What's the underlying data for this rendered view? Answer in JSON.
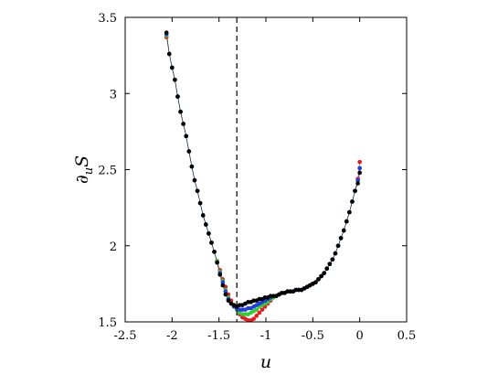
{
  "chart_data": {
    "type": "scatter",
    "title": "",
    "xlabel": "u",
    "ylabel": {
      "partial": "∂",
      "sub": "u",
      "main": "S"
    },
    "xlim": [
      -2.5,
      0.5
    ],
    "ylim": [
      1.5,
      3.5
    ],
    "xticks": [
      "-2.5",
      "-2",
      "-1.5",
      "-1",
      "-0.5",
      "0",
      "0.5"
    ],
    "yticks": [
      "1.5",
      "2",
      "2.5",
      "3",
      "3.5"
    ],
    "xtick_values": [
      -2.5,
      -2,
      -1.5,
      -1,
      -0.5,
      0,
      0.5
    ],
    "ytick_values": [
      1.5,
      2,
      2.5,
      3,
      3.5
    ],
    "vline": {
      "x": -1.31,
      "style": "dashed",
      "color": "#000000"
    },
    "grid": false,
    "legend": "none",
    "series": [
      {
        "color": "#e41a1c",
        "x": [
          -2.06,
          -2.03,
          -2.0,
          -1.97,
          -1.94,
          -1.91,
          -1.88,
          -1.85,
          -1.82,
          -1.79,
          -1.76,
          -1.73,
          -1.7,
          -1.67,
          -1.64,
          -1.61,
          -1.58,
          -1.55,
          -1.52,
          -1.49,
          -1.46,
          -1.43,
          -1.4,
          -1.37,
          -1.34,
          -1.31,
          -1.28,
          -1.25,
          -1.22,
          -1.19,
          -1.16,
          -1.13,
          -1.1,
          -1.07,
          -1.04,
          -1.01,
          -0.98,
          -0.95,
          -0.92,
          -0.89,
          -0.86,
          -0.83,
          -0.8,
          -0.77,
          -0.74,
          -0.71,
          -0.68,
          -0.65,
          -0.62,
          -0.59,
          -0.56,
          -0.53,
          -0.5,
          -0.47,
          -0.44,
          -0.41,
          -0.38,
          -0.35,
          -0.32,
          -0.29,
          -0.26,
          -0.23,
          -0.2,
          -0.17,
          -0.14,
          -0.11,
          -0.08,
          -0.05,
          -0.02,
          0.0
        ],
        "y": [
          3.37,
          3.26,
          3.17,
          3.09,
          2.98,
          2.88,
          2.8,
          2.72,
          2.62,
          2.52,
          2.43,
          2.36,
          2.28,
          2.2,
          2.14,
          2.08,
          2.02,
          1.96,
          1.9,
          1.84,
          1.78,
          1.73,
          1.68,
          1.64,
          1.61,
          1.58,
          1.55,
          1.53,
          1.52,
          1.51,
          1.51,
          1.52,
          1.54,
          1.56,
          1.58,
          1.6,
          1.62,
          1.64,
          1.66,
          1.67,
          1.68,
          1.69,
          1.69,
          1.7,
          1.7,
          1.7,
          1.71,
          1.71,
          1.71,
          1.72,
          1.73,
          1.74,
          1.75,
          1.76,
          1.78,
          1.8,
          1.82,
          1.85,
          1.88,
          1.91,
          1.95,
          2.0,
          2.05,
          2.1,
          2.16,
          2.22,
          2.29,
          2.36,
          2.44,
          2.55
        ]
      },
      {
        "color": "#33cc33",
        "x": [
          -2.06,
          -2.03,
          -2.0,
          -1.97,
          -1.94,
          -1.91,
          -1.88,
          -1.85,
          -1.82,
          -1.79,
          -1.76,
          -1.73,
          -1.7,
          -1.67,
          -1.64,
          -1.61,
          -1.58,
          -1.55,
          -1.52,
          -1.49,
          -1.46,
          -1.43,
          -1.4,
          -1.37,
          -1.34,
          -1.31,
          -1.28,
          -1.25,
          -1.22,
          -1.19,
          -1.16,
          -1.13,
          -1.1,
          -1.07,
          -1.04,
          -1.01,
          -0.98,
          -0.95,
          -0.92,
          -0.89,
          -0.86,
          -0.83,
          -0.8,
          -0.77,
          -0.74,
          -0.71,
          -0.68,
          -0.65,
          -0.62,
          -0.59,
          -0.56,
          -0.53,
          -0.5,
          -0.47,
          -0.44,
          -0.41,
          -0.38,
          -0.35,
          -0.32,
          -0.29,
          -0.26,
          -0.23,
          -0.2,
          -0.17,
          -0.14,
          -0.11,
          -0.08,
          -0.05,
          -0.02,
          0.0
        ],
        "y": [
          3.38,
          3.26,
          3.17,
          3.09,
          2.98,
          2.88,
          2.8,
          2.72,
          2.62,
          2.52,
          2.43,
          2.36,
          2.28,
          2.2,
          2.14,
          2.08,
          2.02,
          1.96,
          1.9,
          1.83,
          1.77,
          1.71,
          1.66,
          1.62,
          1.6,
          1.58,
          1.56,
          1.55,
          1.55,
          1.55,
          1.56,
          1.57,
          1.58,
          1.6,
          1.61,
          1.62,
          1.63,
          1.65,
          1.66,
          1.67,
          1.68,
          1.69,
          1.69,
          1.7,
          1.7,
          1.7,
          1.71,
          1.71,
          1.71,
          1.72,
          1.73,
          1.74,
          1.75,
          1.76,
          1.78,
          1.8,
          1.82,
          1.85,
          1.88,
          1.91,
          1.95,
          2.0,
          2.05,
          2.1,
          2.16,
          2.22,
          2.29,
          2.36,
          2.43,
          2.51
        ]
      },
      {
        "color": "#1f3fe0",
        "x": [
          -2.06,
          -2.03,
          -2.0,
          -1.97,
          -1.94,
          -1.91,
          -1.88,
          -1.85,
          -1.82,
          -1.79,
          -1.76,
          -1.73,
          -1.7,
          -1.67,
          -1.64,
          -1.61,
          -1.58,
          -1.55,
          -1.52,
          -1.49,
          -1.46,
          -1.43,
          -1.4,
          -1.37,
          -1.34,
          -1.31,
          -1.28,
          -1.25,
          -1.22,
          -1.19,
          -1.16,
          -1.13,
          -1.1,
          -1.07,
          -1.04,
          -1.01,
          -0.98,
          -0.95,
          -0.92,
          -0.89,
          -0.86,
          -0.83,
          -0.8,
          -0.77,
          -0.74,
          -0.71,
          -0.68,
          -0.65,
          -0.62,
          -0.59,
          -0.56,
          -0.53,
          -0.5,
          -0.47,
          -0.44,
          -0.41,
          -0.38,
          -0.35,
          -0.32,
          -0.29,
          -0.26,
          -0.23,
          -0.2,
          -0.17,
          -0.14,
          -0.11,
          -0.08,
          -0.05,
          -0.02,
          0.0
        ],
        "y": [
          3.39,
          3.26,
          3.17,
          3.09,
          2.98,
          2.88,
          2.8,
          2.72,
          2.62,
          2.52,
          2.43,
          2.36,
          2.28,
          2.2,
          2.14,
          2.08,
          2.02,
          1.96,
          1.89,
          1.82,
          1.76,
          1.7,
          1.65,
          1.62,
          1.6,
          1.59,
          1.58,
          1.58,
          1.58,
          1.59,
          1.59,
          1.6,
          1.61,
          1.62,
          1.63,
          1.64,
          1.65,
          1.66,
          1.67,
          1.67,
          1.68,
          1.69,
          1.69,
          1.7,
          1.7,
          1.7,
          1.71,
          1.71,
          1.71,
          1.72,
          1.73,
          1.74,
          1.75,
          1.76,
          1.78,
          1.8,
          1.82,
          1.85,
          1.88,
          1.91,
          1.95,
          2.0,
          2.05,
          2.1,
          2.16,
          2.22,
          2.29,
          2.36,
          2.43,
          2.51
        ]
      },
      {
        "color": "#000000",
        "x": [
          -2.06,
          -2.03,
          -2.0,
          -1.97,
          -1.94,
          -1.91,
          -1.88,
          -1.85,
          -1.82,
          -1.79,
          -1.76,
          -1.73,
          -1.7,
          -1.67,
          -1.64,
          -1.61,
          -1.58,
          -1.55,
          -1.52,
          -1.49,
          -1.46,
          -1.43,
          -1.4,
          -1.37,
          -1.34,
          -1.31,
          -1.28,
          -1.25,
          -1.22,
          -1.19,
          -1.16,
          -1.13,
          -1.1,
          -1.07,
          -1.04,
          -1.01,
          -0.98,
          -0.95,
          -0.92,
          -0.89,
          -0.86,
          -0.83,
          -0.8,
          -0.77,
          -0.74,
          -0.71,
          -0.68,
          -0.65,
          -0.62,
          -0.59,
          -0.56,
          -0.53,
          -0.5,
          -0.47,
          -0.44,
          -0.41,
          -0.38,
          -0.35,
          -0.32,
          -0.29,
          -0.26,
          -0.23,
          -0.2,
          -0.17,
          -0.14,
          -0.11,
          -0.08,
          -0.05,
          -0.02,
          0.0
        ],
        "y": [
          3.4,
          3.26,
          3.17,
          3.09,
          2.98,
          2.88,
          2.8,
          2.72,
          2.62,
          2.52,
          2.43,
          2.36,
          2.28,
          2.2,
          2.14,
          2.08,
          2.02,
          1.96,
          1.89,
          1.81,
          1.74,
          1.68,
          1.64,
          1.62,
          1.61,
          1.6,
          1.61,
          1.61,
          1.62,
          1.63,
          1.63,
          1.64,
          1.64,
          1.65,
          1.65,
          1.66,
          1.66,
          1.67,
          1.67,
          1.67,
          1.68,
          1.69,
          1.69,
          1.7,
          1.7,
          1.7,
          1.71,
          1.71,
          1.71,
          1.72,
          1.73,
          1.74,
          1.75,
          1.76,
          1.78,
          1.8,
          1.82,
          1.85,
          1.88,
          1.91,
          1.95,
          2.0,
          2.05,
          2.1,
          2.16,
          2.22,
          2.29,
          2.36,
          2.41,
          2.48
        ]
      }
    ]
  }
}
